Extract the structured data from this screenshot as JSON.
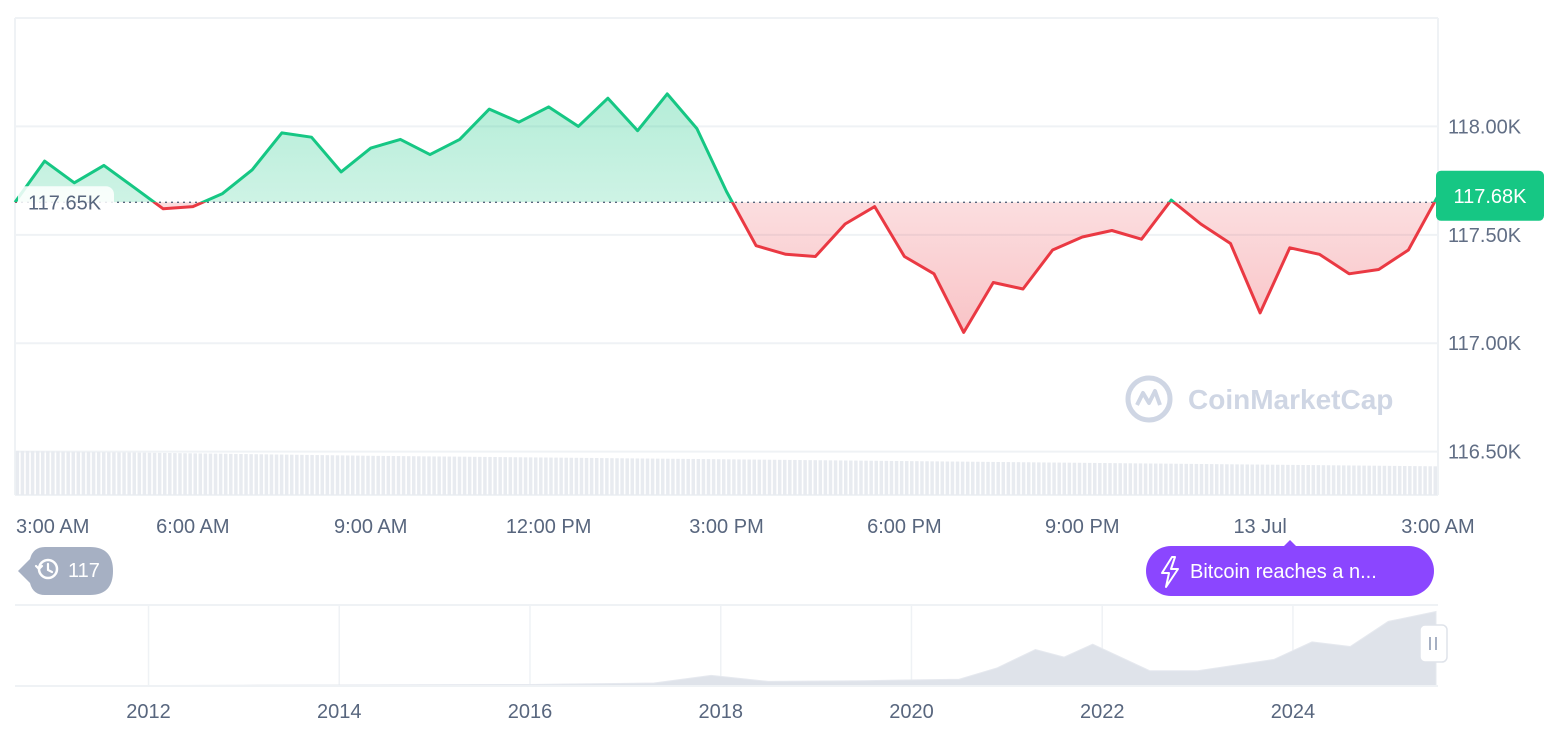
{
  "chart_data": {
    "type": "area",
    "reference_value": 117.65,
    "reference_label": "117.65K",
    "current_value": 117.68,
    "current_label": "117.68K",
    "ylim": [
      116.3,
      118.5
    ],
    "y_ticks": [
      {
        "value": 118.0,
        "label": "118.00K"
      },
      {
        "value": 117.5,
        "label": "117.50K"
      },
      {
        "value": 117.0,
        "label": "117.00K"
      },
      {
        "value": 116.5,
        "label": "116.50K"
      }
    ],
    "x_ticks": [
      "3:00 AM",
      "6:00 AM",
      "9:00 AM",
      "12:00 PM",
      "3:00 PM",
      "6:00 PM",
      "9:00 PM",
      "13 Jul",
      "3:00 AM"
    ],
    "x_range_hours": [
      0,
      24
    ],
    "x_tick_hours": [
      0,
      3,
      6,
      9,
      12,
      15,
      18,
      21,
      24
    ],
    "x_hours": [
      0.0,
      0.5,
      1.0,
      1.5,
      2.0,
      2.5,
      3.0,
      3.5,
      4.0,
      4.5,
      5.0,
      5.5,
      6.0,
      6.5,
      7.0,
      7.5,
      8.0,
      8.5,
      9.0,
      9.5,
      10.0,
      10.5,
      11.0,
      11.5,
      12.0,
      12.5,
      13.0,
      13.5,
      14.0,
      14.5,
      15.0,
      15.5,
      16.0,
      16.5,
      17.0,
      17.5,
      18.0,
      18.5,
      19.0,
      19.5,
      20.0,
      20.5,
      21.0,
      21.5,
      22.0,
      22.5,
      23.0,
      23.5,
      24.0
    ],
    "y_values": [
      117.65,
      117.84,
      117.74,
      117.82,
      117.72,
      117.62,
      117.63,
      117.69,
      117.8,
      117.97,
      117.95,
      117.79,
      117.9,
      117.94,
      117.87,
      117.94,
      118.08,
      118.02,
      118.09,
      118.0,
      118.13,
      117.98,
      118.15,
      117.99,
      117.7,
      117.45,
      117.41,
      117.4,
      117.55,
      117.63,
      117.4,
      117.32,
      117.05,
      117.28,
      117.25,
      117.43,
      117.49,
      117.52,
      117.48,
      117.66,
      117.55,
      117.46,
      117.14,
      117.44,
      117.41,
      117.32,
      117.34,
      117.43,
      117.68
    ],
    "volume_bar_count": 280,
    "volume_trend": [
      0.63,
      0.56,
      0.51,
      0.46,
      0.41
    ],
    "navigator": {
      "x_ticks": [
        "2012",
        "2014",
        "2016",
        "2018",
        "2020",
        "2022",
        "2024"
      ],
      "x_years": [
        2012,
        2014,
        2016,
        2018,
        2020,
        2022,
        2024
      ],
      "range_years": [
        2010.6,
        2025.5
      ],
      "series_years": [
        2010.6,
        2013,
        2016,
        2017.3,
        2017.9,
        2018.5,
        2019.5,
        2020.5,
        2020.9,
        2021.3,
        2021.6,
        2021.9,
        2022.5,
        2023.0,
        2023.8,
        2024.2,
        2024.6,
        2025.0,
        2025.5
      ],
      "series_values": [
        0.0,
        0.01,
        0.02,
        0.04,
        0.14,
        0.06,
        0.07,
        0.09,
        0.24,
        0.48,
        0.38,
        0.55,
        0.2,
        0.2,
        0.35,
        0.58,
        0.52,
        0.85,
        0.98
      ]
    }
  },
  "watermark": {
    "text": "CoinMarketCap"
  },
  "badges": {
    "history_count": "117",
    "news": "Bitcoin reaches a n..."
  },
  "icons": {
    "history": "history-clock-icon",
    "news": "lightning-icon",
    "logo": "coinmarketcap-logo-icon",
    "handle": "range-handle-icon"
  },
  "colors": {
    "up": "#16c784",
    "down": "#ea3943",
    "news_pill": "#8b46ff",
    "history_pill": "#a6b0c3",
    "grid": "#eff2f5"
  }
}
